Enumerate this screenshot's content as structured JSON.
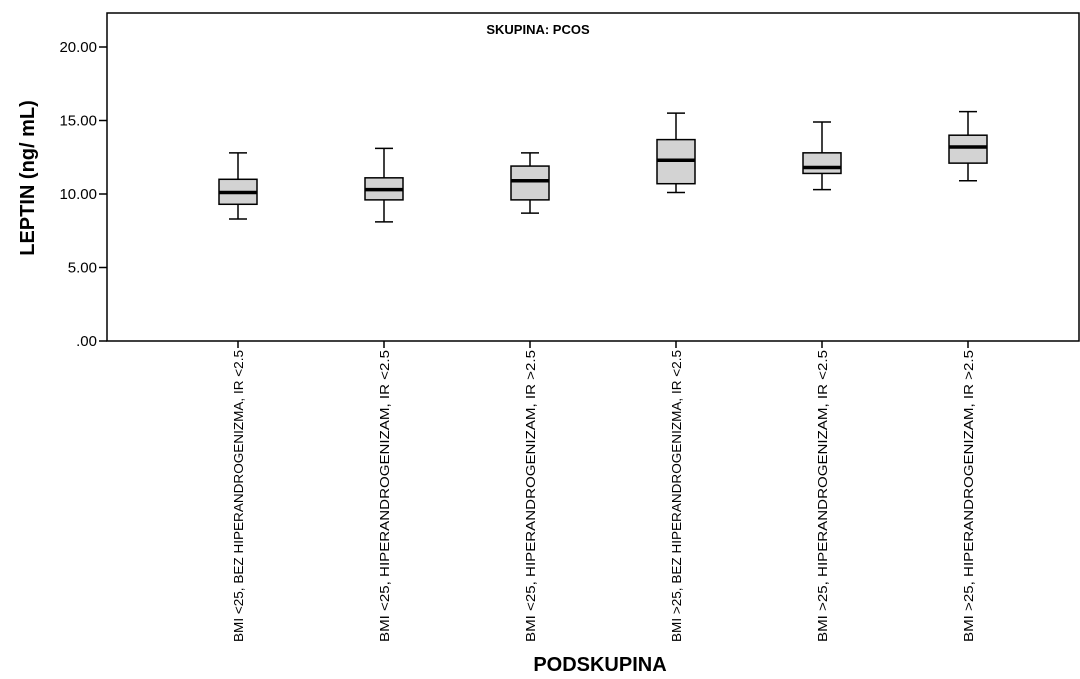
{
  "chart_data": {
    "type": "box",
    "title": "SKUPINA: PCOS",
    "xlabel": "PODSKUPINA",
    "ylabel": "LEPTIN (ng/ mL)",
    "ylim": [
      0,
      20
    ],
    "yticks": [
      0,
      5,
      10,
      15,
      20
    ],
    "ytick_labels": [
      ".00",
      "5.00",
      "10.00",
      "15.00",
      "20.00"
    ],
    "grid": false,
    "legend": "none",
    "colors": {
      "box_fill": "#d3d3d3",
      "stroke": "#000000"
    },
    "categories": [
      "BMI <25, BEZ HIPERANDROGENIZMA, IR <2.5",
      "BMI <25, HIPERANDROGENIZAM, IR <2.5",
      "BMI <25, HIPERANDROGENIZAM, IR >2.5",
      "BMI >25, BEZ HIPERANDROGENIZMA, IR <2.5",
      "BMI >25, HIPERANDROGENIZAM, IR <2.5",
      "BMI >25, HIPERANDROGENIZAM, IR >2.5"
    ],
    "boxes": [
      {
        "min": 8.3,
        "q1": 9.3,
        "median": 10.1,
        "q3": 11.0,
        "max": 12.8
      },
      {
        "min": 8.1,
        "q1": 9.6,
        "median": 10.3,
        "q3": 11.1,
        "max": 13.1
      },
      {
        "min": 8.7,
        "q1": 9.6,
        "median": 10.9,
        "q3": 11.9,
        "max": 12.8
      },
      {
        "min": 10.1,
        "q1": 10.7,
        "median": 12.3,
        "q3": 13.7,
        "max": 15.5
      },
      {
        "min": 10.3,
        "q1": 11.4,
        "median": 11.8,
        "q3": 12.8,
        "max": 14.9
      },
      {
        "min": 10.9,
        "q1": 12.1,
        "median": 13.2,
        "q3": 14.0,
        "max": 15.6
      }
    ]
  }
}
